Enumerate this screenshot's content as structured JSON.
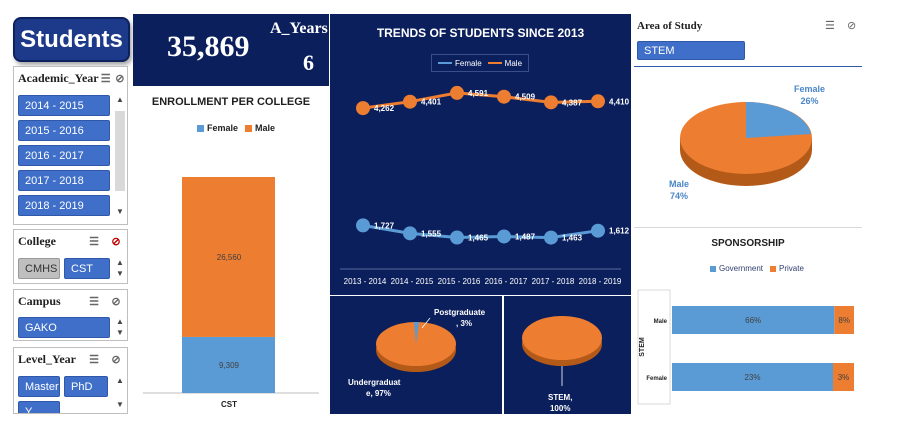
{
  "title_button": "Students",
  "kpi": {
    "total": "35,869",
    "years_label": "A_Years",
    "years_value": "6"
  },
  "slicers": {
    "academic_year": {
      "label": "Academic_Year",
      "items": [
        "2014 - 2015",
        "2015 - 2016",
        "2016 - 2017",
        "2017 - 2018",
        "2018 - 2019"
      ]
    },
    "college": {
      "label": "College",
      "items": [
        "CMHS",
        "CST"
      ]
    },
    "campus": {
      "label": "Campus",
      "items": [
        "GAKO"
      ]
    },
    "level_year": {
      "label": "Level_Year",
      "items": [
        "Master",
        "PhD",
        "Y..."
      ]
    },
    "area_of_study": {
      "label": "Area of Study",
      "items": [
        "STEM"
      ]
    }
  },
  "colors": {
    "navy": "#0b1f5c",
    "female": "#5b9bd5",
    "male": "#ed7d31",
    "chip": "#3f6fc9"
  },
  "icons": [
    "multi-select-icon",
    "clear-filter-icon",
    "scroll-up-icon",
    "scroll-down-icon"
  ],
  "enrollment": {
    "title": "ENROLLMENT PER COLLEGE",
    "chart_data": {
      "type": "bar",
      "stacked": true,
      "categories": [
        "CST"
      ],
      "series": [
        {
          "name": "Female",
          "values": [
            9309
          ]
        },
        {
          "name": "Male",
          "values": [
            26560
          ]
        }
      ],
      "value_labels": [
        "9,309",
        "26,560"
      ]
    }
  },
  "trends": {
    "title": "TRENDS OF STUDENTS SINCE 2013",
    "chart_data": {
      "type": "line",
      "x": [
        "2013 - 2014",
        "2014 - 2015",
        "2015 - 2016",
        "2016 - 2017",
        "2017 - 2018",
        "2018 - 2019"
      ],
      "series": [
        {
          "name": "Female",
          "values": [
            1727,
            1555,
            1465,
            1487,
            1463,
            1612
          ],
          "labels": [
            "1,727",
            "1,555",
            "1,465",
            "1,487",
            "1,463",
            "1,612"
          ]
        },
        {
          "name": "Male",
          "values": [
            4262,
            4401,
            4591,
            4509,
            4387,
            4410
          ],
          "labels": [
            "4,262",
            "4,401",
            "4,591",
            "4,509",
            "4,387",
            "4,410"
          ]
        }
      ]
    }
  },
  "degree_pie": {
    "chart_data": {
      "type": "pie",
      "categories": [
        "Postgraduate",
        "Undergraduate"
      ],
      "values": [
        3,
        97
      ]
    },
    "label_pg_1": "Postgraduate",
    "label_pg_2": ", 3%",
    "label_ug_1": "Undergraduat",
    "label_ug_2": "e, 97%"
  },
  "stem_pie": {
    "chart_data": {
      "type": "pie",
      "categories": [
        "STEM"
      ],
      "values": [
        100
      ]
    },
    "label_1": "STEM,",
    "label_2": "100%"
  },
  "area_pie": {
    "chart_data": {
      "type": "pie",
      "categories": [
        "Female",
        "Male"
      ],
      "values": [
        26,
        74
      ]
    },
    "female_1": "Female",
    "female_2": "26%",
    "male_1": "Male",
    "male_2": "74%"
  },
  "sponsorship": {
    "title": "SPONSORSHIP",
    "axis_label": "STEM",
    "chart_data": {
      "type": "bar",
      "stacked": true,
      "orientation": "horizontal",
      "categories": [
        "Male",
        "Female"
      ],
      "series": [
        {
          "name": "Government",
          "values": [
            66,
            23
          ]
        },
        {
          "name": "Private",
          "values": [
            8,
            3
          ]
        }
      ],
      "value_labels": [
        [
          "66%",
          "8%"
        ],
        [
          "23%",
          "3%"
        ]
      ]
    }
  }
}
